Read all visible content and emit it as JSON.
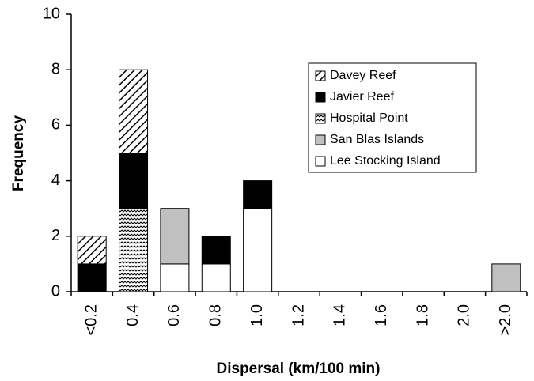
{
  "chart_data": {
    "type": "stacked_bar",
    "x_label": "Dispersal (km/100 min)",
    "y_label": "Frequency",
    "categories": [
      "<0.2",
      "0.4",
      "0.6",
      "0.8",
      "1.0",
      "1.2",
      "1.4",
      "1.6",
      "1.8",
      "2.0",
      ">2.0"
    ],
    "series": [
      {
        "name": "Lee Stocking Island",
        "color": "#ffffff",
        "values": [
          0,
          0,
          1,
          1,
          3,
          0,
          0,
          0,
          0,
          0,
          0
        ]
      },
      {
        "name": "San Blas Islands",
        "color": "#c0c0c0",
        "values": [
          0,
          0,
          2,
          0,
          0,
          0,
          0,
          0,
          0,
          0,
          1
        ]
      },
      {
        "name": "Hospital Point",
        "color": "#000000",
        "pattern": "wave",
        "values": [
          0,
          3,
          0,
          0,
          0,
          0,
          0,
          0,
          0,
          0,
          0
        ]
      },
      {
        "name": "Javier Reef",
        "color": "#000000",
        "values": [
          1,
          2,
          0,
          1,
          1,
          0,
          0,
          0,
          0,
          0,
          0
        ]
      },
      {
        "name": "Davey Reef",
        "color": "#000000",
        "pattern": "diagonal",
        "values": [
          1,
          3,
          0,
          0,
          0,
          0,
          0,
          0,
          0,
          0,
          0
        ]
      }
    ],
    "ylim": [
      0,
      10
    ],
    "yticks": [
      0,
      2,
      4,
      6,
      8,
      10
    ],
    "grid": false,
    "legend": "upper right"
  }
}
